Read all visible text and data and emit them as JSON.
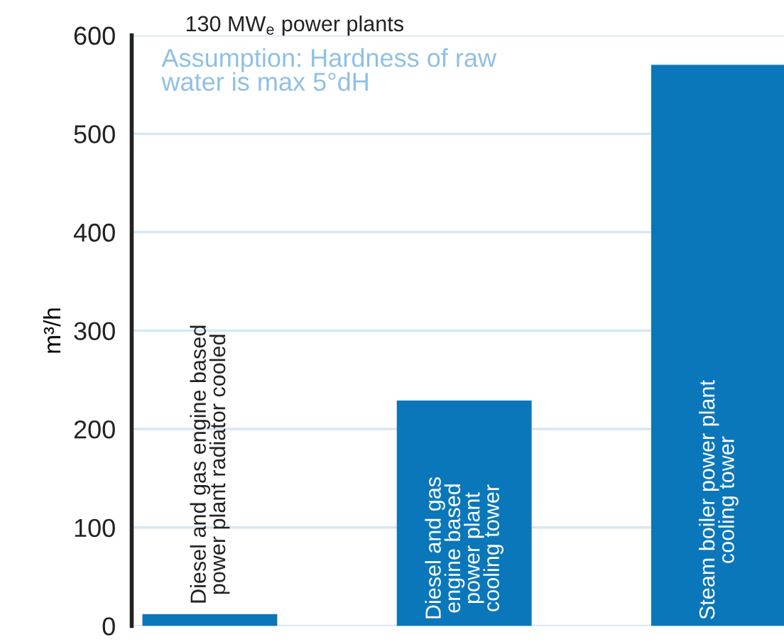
{
  "chart_data": {
    "type": "bar",
    "title": "130 MW$_{e}$ power plants",
    "ylabel": "m³/h",
    "annotations": [
      "Assumption: Hardness of raw\nwater is max 5°dH"
    ],
    "categories": [
      "Diesel and gas engine based\npower plant radiator cooled",
      "Diesel and gas\nengine based\npower plant\ncooling tower",
      "Steam boiler power plant\ncooling tower"
    ],
    "values": [
      12,
      229,
      570
    ],
    "color": "#0a77ba",
    "ylim": [
      0,
      600
    ],
    "yticks": [
      0,
      100,
      200,
      300,
      400,
      500,
      600
    ],
    "grid": "y",
    "legend": false
  }
}
